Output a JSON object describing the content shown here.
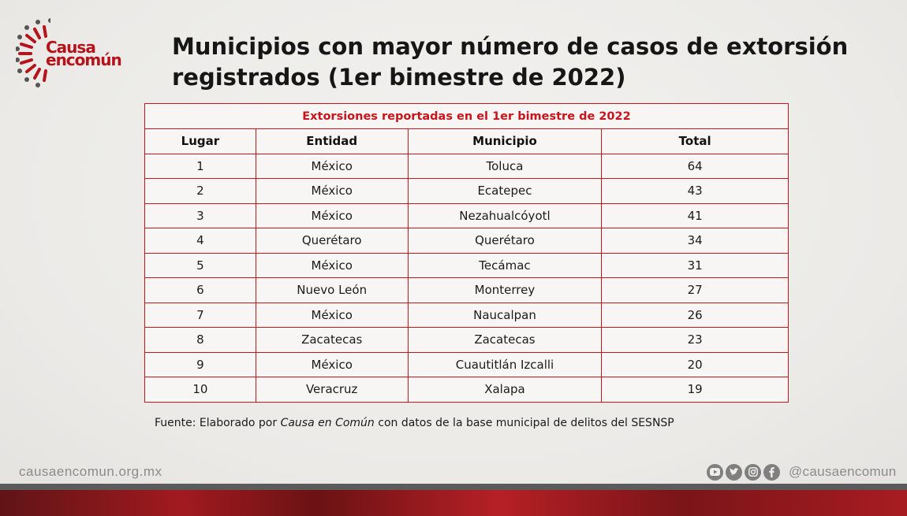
{
  "logo": {
    "line1": "Causa",
    "line2": "encomún"
  },
  "title": "Municipios con mayor número de casos de extorsión registrados (1er bimestre de 2022)",
  "table": {
    "caption": "Extorsiones reportadas en el 1er bimestre de 2022",
    "headers": [
      "Lugar",
      "Entidad",
      "Municipio",
      "Total"
    ],
    "rows": [
      [
        "1",
        "México",
        "Toluca",
        "64"
      ],
      [
        "2",
        "México",
        "Ecatepec",
        "43"
      ],
      [
        "3",
        "México",
        "Nezahualcóyotl",
        "41"
      ],
      [
        "4",
        "Querétaro",
        "Querétaro",
        "34"
      ],
      [
        "5",
        "México",
        "Tecámac",
        "31"
      ],
      [
        "6",
        "Nuevo León",
        "Monterrey",
        "27"
      ],
      [
        "7",
        "México",
        "Naucalpan",
        "26"
      ],
      [
        "8",
        "Zacatecas",
        "Zacatecas",
        "23"
      ],
      [
        "9",
        "México",
        "Cuautitlán Izcalli",
        "20"
      ],
      [
        "10",
        "Veracruz",
        "Xalapa",
        "19"
      ]
    ]
  },
  "source": {
    "prefix": "Fuente: Elaborado por ",
    "org": "Causa en Común",
    "suffix": " con datos de la base municipal de delitos del SESNSP"
  },
  "footer": {
    "url": "causaencomun.org.mx",
    "handle": "@causaencomun",
    "social_icons": [
      "youtube-icon",
      "twitter-icon",
      "instagram-icon",
      "facebook-icon"
    ]
  },
  "colors": {
    "accent": "#c8141c",
    "brand_red": "#b5121b",
    "footer_gray": "#8b8b8b"
  }
}
